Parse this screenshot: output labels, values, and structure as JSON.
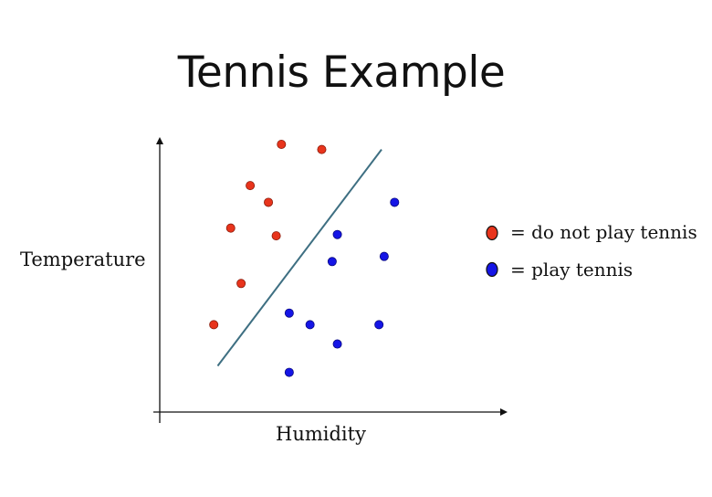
{
  "slide": {
    "title": "Tennis Example"
  },
  "chart_data": {
    "type": "scatter",
    "title": "Tennis Example",
    "xlabel": "Humidity",
    "ylabel": "Temperature",
    "xlim": [
      0,
      100
    ],
    "ylim": [
      0,
      100
    ],
    "grid": false,
    "legend_placement": "right",
    "ticks": false,
    "series": [
      {
        "name": "= do not play tennis",
        "color": "#e8341c",
        "edge_color": "#8a1c0c",
        "points": [
          {
            "x": 38,
            "y": 100
          },
          {
            "x": 53.5,
            "y": 98
          },
          {
            "x": 26,
            "y": 84
          },
          {
            "x": 33,
            "y": 77.5
          },
          {
            "x": 18.5,
            "y": 67.5
          },
          {
            "x": 36,
            "y": 64.5
          },
          {
            "x": 22.5,
            "y": 46
          },
          {
            "x": 12,
            "y": 30
          }
        ]
      },
      {
        "name": "= play tennis",
        "color": "#1515e6",
        "edge_color": "#0b0b80",
        "points": [
          {
            "x": 81.5,
            "y": 77.5
          },
          {
            "x": 59.5,
            "y": 65
          },
          {
            "x": 57.5,
            "y": 54.5
          },
          {
            "x": 77.5,
            "y": 56.5
          },
          {
            "x": 41,
            "y": 34.5
          },
          {
            "x": 49,
            "y": 30
          },
          {
            "x": 59.5,
            "y": 22.5
          },
          {
            "x": 75.5,
            "y": 30
          },
          {
            "x": 41,
            "y": 11.5
          }
        ]
      }
    ],
    "decision_boundary": {
      "color": "#3e6f82",
      "points": [
        {
          "x": 13.5,
          "y": 14
        },
        {
          "x": 76.5,
          "y": 98
        }
      ]
    }
  }
}
